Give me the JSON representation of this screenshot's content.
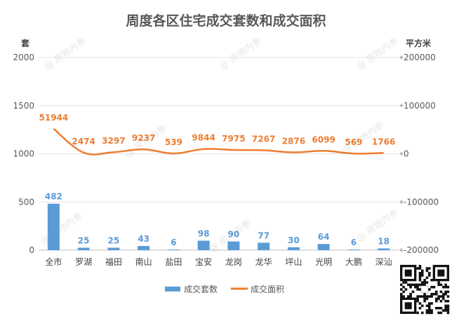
{
  "chart_data": {
    "type": "bar",
    "title": "周度各区住宅成交套数和成交面积",
    "left_unit": "套",
    "right_unit": "平方米",
    "categories": [
      "全市",
      "罗湖",
      "福田",
      "南山",
      "盐田",
      "宝安",
      "龙岗",
      "龙华",
      "坪山",
      "光明",
      "大鹏",
      "深汕"
    ],
    "series": [
      {
        "name": "成交套数",
        "kind": "bar",
        "axis": "left",
        "color": "#5b9bd5",
        "values": [
          482,
          25,
          25,
          43,
          6,
          98,
          90,
          77,
          30,
          64,
          6,
          18
        ],
        "labels": [
          "482",
          "25",
          "25",
          "43",
          "6",
          "98",
          "90",
          "77",
          "30",
          "64",
          "6",
          "18"
        ]
      },
      {
        "name": "成交面积",
        "kind": "line",
        "axis": "right",
        "color": "#ed7d31",
        "values": [
          51944,
          2474,
          3297,
          9237,
          539,
          9844,
          7975,
          7267,
          2876,
          6099,
          569,
          1766
        ],
        "labels": [
          "51944",
          "2474",
          "3297",
          "9237",
          "539",
          "9844",
          "7975",
          "7267",
          "2876",
          "6099",
          "569",
          "1766"
        ]
      }
    ],
    "left_axis": {
      "ticks": [
        "0",
        "500",
        "1000",
        "1500",
        "2000"
      ],
      "values": [
        0,
        500,
        1000,
        1500,
        2000
      ],
      "range": [
        0,
        2000
      ]
    },
    "right_axis": {
      "ticks": [
        "-200000",
        "-100000",
        "0",
        "100000",
        "200000"
      ],
      "values": [
        -200000,
        -100000,
        0,
        100000,
        200000
      ],
      "range": [
        -200000,
        200000
      ]
    },
    "legend_position": "bottom",
    "grid": true,
    "watermark": "@ 房地内参"
  }
}
